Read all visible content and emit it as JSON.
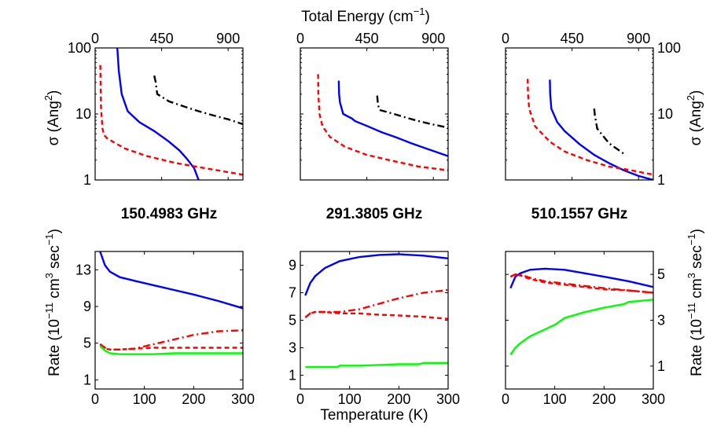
{
  "labels": {
    "top_xlabel": "Total Energy (cm",
    "top_xlabel_sup": "−1",
    "top_xlabel_close": ")",
    "sigma_label": "σ (Ang",
    "sigma_sup": "2",
    "sigma_close": ")",
    "rate_label_a": "Rate (10",
    "rate_sup1": "−11",
    "rate_label_b": " cm",
    "rate_sup2": "3",
    "rate_label_c": " sec",
    "rate_sup3": "−1",
    "rate_label_d": ")",
    "bottom_xlabel": "Temperature (K)"
  },
  "colors": {
    "blue": "#0000ff",
    "red": "#ff0000",
    "black": "#000000",
    "green": "#00ff00"
  },
  "chart_data": [
    {
      "type": "line",
      "panel": "cross-section-1",
      "xlabel": "Total Energy (cm−1)",
      "xlim": [
        0,
        1000
      ],
      "xticks": [
        0,
        450,
        900
      ],
      "yscale": "log",
      "ylim": [
        1,
        100
      ],
      "yticks": [
        1,
        10,
        100
      ],
      "series": [
        {
          "name": "blue",
          "color": "#0000ff",
          "style": "solid",
          "x": [
            150,
            160,
            180,
            220,
            300,
            400,
            500,
            570,
            620,
            670,
            700
          ],
          "y": [
            100,
            45,
            20,
            11,
            7.5,
            5.5,
            3.8,
            2.8,
            2.1,
            1.5,
            1.0
          ]
        },
        {
          "name": "red",
          "color": "#ff0000",
          "style": "dashed",
          "x": [
            35,
            40,
            50,
            60,
            80,
            120,
            200,
            350,
            550,
            750,
            1000
          ],
          "y": [
            55,
            12,
            6,
            4.8,
            4.3,
            3.8,
            3.0,
            2.3,
            1.8,
            1.5,
            1.2
          ]
        },
        {
          "name": "black",
          "color": "#000000",
          "style": "dashdot",
          "x": [
            400,
            410,
            420,
            500,
            600,
            700,
            800,
            900,
            1000
          ],
          "y": [
            38,
            30,
            20,
            15.5,
            13,
            11,
            9.5,
            8.3,
            7
          ]
        }
      ]
    },
    {
      "type": "line",
      "panel": "cross-section-2",
      "xlabel": "Total Energy (cm−1)",
      "xlim": [
        0,
        1000
      ],
      "xticks": [
        0,
        450,
        900
      ],
      "yscale": "log",
      "ylim": [
        1,
        100
      ],
      "yticks": [
        1,
        10,
        100
      ],
      "series": [
        {
          "name": "blue",
          "color": "#0000ff",
          "style": "solid",
          "x": [
            260,
            262,
            268,
            290,
            350,
            370,
            450,
            550,
            650,
            750,
            850,
            1000
          ],
          "y": [
            32,
            20,
            15,
            10,
            8.5,
            7.8,
            6.6,
            5.3,
            4.4,
            3.6,
            3.0,
            2.3
          ]
        },
        {
          "name": "red",
          "color": "#ff0000",
          "style": "dashed",
          "x": [
            120,
            122,
            130,
            150,
            200,
            300,
            450,
            600,
            800,
            1000
          ],
          "y": [
            40,
            20,
            10,
            6.5,
            4.5,
            3.2,
            2.4,
            2.0,
            1.6,
            1.4
          ]
        },
        {
          "name": "black",
          "color": "#000000",
          "style": "dashdot",
          "x": [
            520,
            525,
            535,
            600,
            700,
            800,
            900,
            1000
          ],
          "y": [
            19,
            14,
            11.5,
            10.5,
            9,
            7.8,
            6.9,
            6.2
          ]
        }
      ]
    },
    {
      "type": "line",
      "panel": "cross-section-3",
      "xlabel": "Total Energy (cm−1)",
      "xlim": [
        0,
        1000
      ],
      "xticks": [
        0,
        450,
        900
      ],
      "yscale": "log",
      "ylim": [
        1,
        100
      ],
      "yticks": [
        1,
        10,
        100
      ],
      "series": [
        {
          "name": "blue",
          "color": "#0000ff",
          "style": "solid",
          "x": [
            300,
            302,
            310,
            350,
            400,
            500,
            600,
            700,
            800,
            900,
            1000
          ],
          "y": [
            33,
            20,
            12,
            7.5,
            5.5,
            3.5,
            2.4,
            1.8,
            1.4,
            1.15,
            1.0
          ]
        },
        {
          "name": "red",
          "color": "#ff0000",
          "style": "dashed",
          "x": [
            150,
            152,
            160,
            200,
            300,
            400,
            550,
            700,
            850,
            1000
          ],
          "y": [
            34,
            20,
            12,
            6.5,
            3.8,
            2.7,
            2.0,
            1.6,
            1.4,
            1.2
          ]
        },
        {
          "name": "black",
          "color": "#000000",
          "style": "dashdot",
          "x": [
            600,
            605,
            620,
            700,
            800
          ],
          "y": [
            12,
            9.5,
            6,
            3.6,
            2.5
          ]
        }
      ]
    },
    {
      "type": "line",
      "panel": "rate-1",
      "title": "150.4983 GHz",
      "xlabel": "",
      "xlim": [
        0,
        300
      ],
      "xticks": [
        0,
        100,
        200,
        300
      ],
      "ylim": [
        0,
        15
      ],
      "yticks": [
        1,
        5,
        9,
        13
      ],
      "series": [
        {
          "name": "blue",
          "color": "#0000ff",
          "style": "solid",
          "x": [
            10,
            20,
            30,
            50,
            80,
            120,
            160,
            200,
            250,
            300
          ],
          "y": [
            15,
            13.5,
            12.8,
            12.2,
            11.8,
            11.3,
            10.8,
            10.3,
            9.6,
            8.8
          ]
        },
        {
          "name": "red-dashdot",
          "color": "#ff0000",
          "style": "dashdot",
          "x": [
            10,
            20,
            30,
            50,
            80,
            120,
            160,
            200,
            250,
            300
          ],
          "y": [
            4.9,
            4.5,
            4.3,
            4.3,
            4.4,
            4.9,
            5.4,
            5.9,
            6.3,
            6.4
          ]
        },
        {
          "name": "red-dashed",
          "color": "#ff0000",
          "style": "dashed",
          "x": [
            10,
            20,
            30,
            50,
            80,
            120,
            160,
            200,
            250,
            300
          ],
          "y": [
            4.8,
            4.4,
            4.3,
            4.3,
            4.4,
            4.5,
            4.5,
            4.5,
            4.5,
            4.5
          ]
        },
        {
          "name": "green",
          "color": "#00ff00",
          "style": "solid",
          "x": [
            10,
            20,
            30,
            50,
            80,
            120,
            160,
            200,
            250,
            300
          ],
          "y": [
            4.7,
            4.2,
            3.9,
            3.8,
            3.8,
            3.8,
            3.9,
            3.9,
            3.9,
            3.9
          ]
        }
      ]
    },
    {
      "type": "line",
      "panel": "rate-2",
      "title": "291.3805 GHz",
      "xlabel": "Temperature (K)",
      "xlim": [
        0,
        300
      ],
      "xticks": [
        0,
        100,
        200,
        300
      ],
      "ylim": [
        0,
        10
      ],
      "yticks": [
        1,
        3,
        5,
        7,
        9
      ],
      "series": [
        {
          "name": "blue",
          "color": "#0000ff",
          "style": "solid",
          "x": [
            10,
            20,
            30,
            50,
            80,
            120,
            160,
            200,
            250,
            300
          ],
          "y": [
            6.8,
            7.7,
            8.2,
            8.8,
            9.3,
            9.6,
            9.75,
            9.8,
            9.7,
            9.5
          ]
        },
        {
          "name": "red-dashdot",
          "color": "#ff0000",
          "style": "dashdot",
          "x": [
            10,
            20,
            30,
            50,
            80,
            120,
            160,
            200,
            250,
            300
          ],
          "y": [
            5.2,
            5.5,
            5.6,
            5.6,
            5.6,
            5.8,
            6.2,
            6.6,
            7.0,
            7.2
          ]
        },
        {
          "name": "red-dashed",
          "color": "#ff0000",
          "style": "dashed",
          "x": [
            10,
            20,
            30,
            50,
            80,
            120,
            160,
            200,
            250,
            300
          ],
          "y": [
            5.2,
            5.5,
            5.6,
            5.6,
            5.5,
            5.5,
            5.4,
            5.35,
            5.25,
            5.1
          ]
        },
        {
          "name": "green",
          "color": "#00ff00",
          "style": "solid",
          "x": [
            10,
            20,
            30,
            50,
            75,
            80,
            120,
            160,
            200,
            240,
            250,
            300
          ],
          "y": [
            1.6,
            1.6,
            1.6,
            1.6,
            1.6,
            1.7,
            1.7,
            1.75,
            1.8,
            1.8,
            1.9,
            1.9
          ]
        }
      ]
    },
    {
      "type": "line",
      "panel": "rate-3",
      "title": "510.1557 GHz",
      "xlabel": "",
      "xlim": [
        0,
        300
      ],
      "xticks": [
        0,
        100,
        200,
        300
      ],
      "ylim": [
        0,
        6
      ],
      "yticks": [
        1,
        3,
        5
      ],
      "series": [
        {
          "name": "blue",
          "color": "#0000ff",
          "style": "solid",
          "x": [
            10,
            20,
            30,
            50,
            80,
            120,
            160,
            200,
            250,
            300
          ],
          "y": [
            4.4,
            4.9,
            5.05,
            5.2,
            5.25,
            5.2,
            5.05,
            4.9,
            4.7,
            4.45
          ]
        },
        {
          "name": "red-dashdot",
          "color": "#ff0000",
          "style": "dashdot",
          "x": [
            10,
            20,
            30,
            50,
            80,
            120,
            160,
            200,
            250,
            300
          ],
          "y": [
            4.9,
            5.0,
            5.0,
            4.85,
            4.7,
            4.6,
            4.5,
            4.4,
            4.3,
            4.2
          ]
        },
        {
          "name": "red-dashed",
          "color": "#ff0000",
          "style": "dashed",
          "x": [
            10,
            20,
            30,
            50,
            80,
            120,
            160,
            200,
            250,
            300
          ],
          "y": [
            4.9,
            5.0,
            4.95,
            4.8,
            4.65,
            4.55,
            4.45,
            4.35,
            4.3,
            4.2
          ]
        },
        {
          "name": "green",
          "color": "#00ff00",
          "style": "solid",
          "x": [
            10,
            20,
            30,
            50,
            80,
            100,
            120,
            160,
            200,
            240,
            250,
            300
          ],
          "y": [
            1.5,
            1.8,
            2.0,
            2.3,
            2.6,
            2.8,
            3.1,
            3.35,
            3.55,
            3.7,
            3.8,
            3.9
          ]
        }
      ]
    }
  ]
}
